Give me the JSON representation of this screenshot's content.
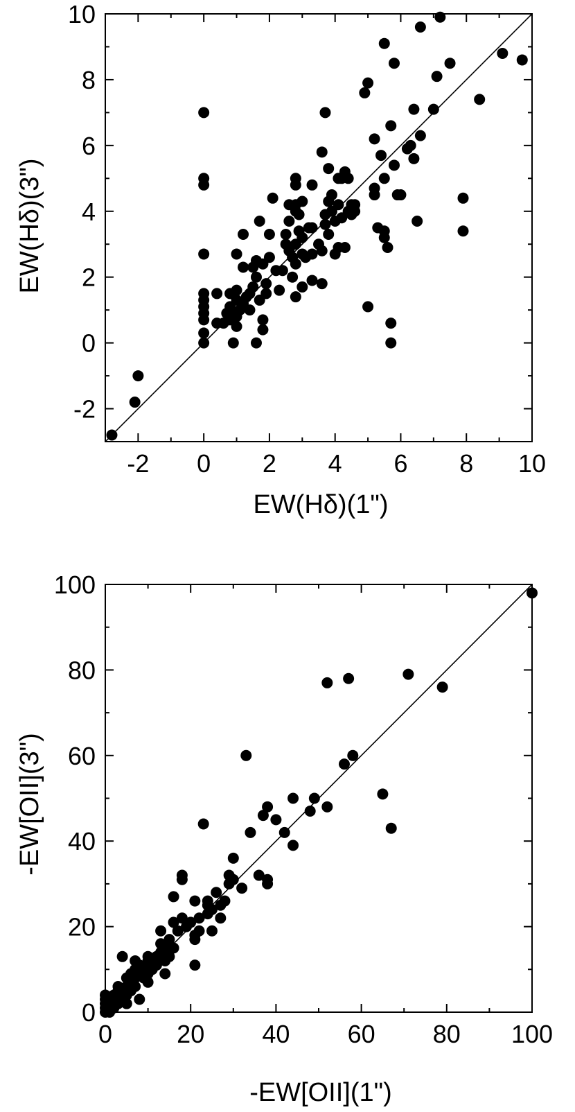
{
  "chart_data": [
    {
      "type": "scatter",
      "title": "",
      "xlabel": "EW(Hδ)(1\")",
      "ylabel": "EW(Hδ)(3\")",
      "xlim": [
        -3,
        10
      ],
      "ylim": [
        -3,
        10
      ],
      "xticks": [
        -2,
        0,
        2,
        4,
        6,
        8,
        10
      ],
      "yticks": [
        -2,
        0,
        2,
        4,
        6,
        8,
        10
      ],
      "xtick_labels": [
        "-2",
        "0",
        "2",
        "4",
        "6",
        "8",
        "10"
      ],
      "ytick_labels": [
        "-2",
        "0",
        "2",
        "4",
        "6",
        "8",
        "10"
      ],
      "grid": false,
      "reference_line": {
        "from": [
          -3,
          -3
        ],
        "to": [
          10,
          10
        ]
      },
      "points": [
        [
          -2.8,
          -2.8
        ],
        [
          -2.1,
          -1.8
        ],
        [
          -2.0,
          -1.0
        ],
        [
          0.0,
          0.0
        ],
        [
          0.0,
          0.3
        ],
        [
          0.0,
          0.7
        ],
        [
          0.0,
          0.9
        ],
        [
          0.0,
          1.1
        ],
        [
          0.0,
          1.3
        ],
        [
          0.0,
          1.5
        ],
        [
          0.0,
          2.7
        ],
        [
          0.0,
          4.8
        ],
        [
          0.0,
          5.0
        ],
        [
          0.0,
          7.0
        ],
        [
          0.4,
          0.6
        ],
        [
          0.4,
          1.5
        ],
        [
          0.6,
          0.6
        ],
        [
          0.7,
          0.9
        ],
        [
          0.8,
          0.7
        ],
        [
          0.8,
          1.1
        ],
        [
          0.8,
          1.5
        ],
        [
          0.9,
          0.0
        ],
        [
          0.9,
          0.9
        ],
        [
          1.0,
          0.5
        ],
        [
          1.0,
          0.8
        ],
        [
          1.0,
          1.3
        ],
        [
          1.0,
          1.6
        ],
        [
          1.0,
          2.7
        ],
        [
          1.1,
          1.0
        ],
        [
          1.2,
          1.2
        ],
        [
          1.2,
          2.3
        ],
        [
          1.2,
          3.3
        ],
        [
          1.3,
          1.4
        ],
        [
          1.4,
          1.0
        ],
        [
          1.4,
          1.5
        ],
        [
          1.5,
          1.7
        ],
        [
          1.5,
          2.3
        ],
        [
          1.6,
          0.0
        ],
        [
          1.6,
          2.0
        ],
        [
          1.6,
          2.5
        ],
        [
          1.7,
          3.7
        ],
        [
          1.7,
          1.3
        ],
        [
          1.8,
          0.4
        ],
        [
          1.8,
          0.7
        ],
        [
          1.8,
          2.4
        ],
        [
          1.9,
          1.5
        ],
        [
          1.9,
          1.8
        ],
        [
          2.0,
          2.6
        ],
        [
          2.0,
          3.3
        ],
        [
          2.1,
          4.4
        ],
        [
          2.2,
          2.2
        ],
        [
          2.3,
          1.6
        ],
        [
          2.4,
          2.2
        ],
        [
          2.5,
          3.0
        ],
        [
          2.5,
          3.3
        ],
        [
          2.6,
          2.8
        ],
        [
          2.6,
          3.7
        ],
        [
          2.6,
          4.2
        ],
        [
          2.7,
          2.0
        ],
        [
          2.7,
          2.6
        ],
        [
          2.8,
          1.4
        ],
        [
          2.8,
          2.4
        ],
        [
          2.8,
          3.0
        ],
        [
          2.8,
          4.0
        ],
        [
          2.8,
          4.2
        ],
        [
          2.8,
          4.8
        ],
        [
          2.8,
          5.0
        ],
        [
          2.9,
          3.4
        ],
        [
          2.9,
          3.9
        ],
        [
          3.0,
          1.7
        ],
        [
          3.0,
          2.7
        ],
        [
          3.0,
          3.2
        ],
        [
          3.0,
          4.3
        ],
        [
          3.1,
          2.6
        ],
        [
          3.2,
          3.5
        ],
        [
          3.3,
          1.9
        ],
        [
          3.3,
          2.7
        ],
        [
          3.3,
          3.5
        ],
        [
          3.3,
          4.8
        ],
        [
          3.5,
          3.0
        ],
        [
          3.6,
          1.8
        ],
        [
          3.6,
          2.8
        ],
        [
          3.6,
          5.8
        ],
        [
          3.7,
          3.6
        ],
        [
          3.7,
          3.9
        ],
        [
          3.7,
          7.0
        ],
        [
          3.8,
          3.3
        ],
        [
          3.8,
          4.3
        ],
        [
          3.8,
          5.3
        ],
        [
          3.9,
          4.0
        ],
        [
          3.9,
          4.5
        ],
        [
          4.0,
          2.7
        ],
        [
          4.0,
          3.7
        ],
        [
          4.1,
          2.9
        ],
        [
          4.1,
          4.2
        ],
        [
          4.1,
          5.0
        ],
        [
          4.2,
          5.0
        ],
        [
          4.2,
          3.8
        ],
        [
          4.3,
          5.2
        ],
        [
          4.3,
          2.9
        ],
        [
          4.4,
          5.0
        ],
        [
          4.4,
          4.0
        ],
        [
          4.5,
          3.9
        ],
        [
          4.5,
          4.2
        ],
        [
          4.6,
          4.0
        ],
        [
          4.6,
          4.2
        ],
        [
          4.9,
          7.6
        ],
        [
          5.0,
          1.1
        ],
        [
          5.0,
          7.9
        ],
        [
          5.2,
          4.5
        ],
        [
          5.2,
          4.7
        ],
        [
          5.2,
          6.2
        ],
        [
          5.3,
          3.5
        ],
        [
          5.4,
          5.7
        ],
        [
          5.5,
          9.1
        ],
        [
          5.5,
          3.4
        ],
        [
          5.5,
          3.2
        ],
        [
          5.5,
          5.0
        ],
        [
          5.6,
          2.9
        ],
        [
          5.7,
          0.0
        ],
        [
          5.7,
          0.6
        ],
        [
          5.7,
          6.6
        ],
        [
          5.8,
          5.4
        ],
        [
          5.8,
          8.5
        ],
        [
          5.9,
          4.5
        ],
        [
          6.0,
          4.5
        ],
        [
          6.2,
          5.9
        ],
        [
          6.3,
          6.0
        ],
        [
          6.4,
          5.6
        ],
        [
          6.4,
          7.1
        ],
        [
          6.5,
          3.7
        ],
        [
          6.6,
          6.3
        ],
        [
          6.6,
          9.6
        ],
        [
          7.0,
          7.1
        ],
        [
          7.1,
          8.1
        ],
        [
          7.2,
          9.9
        ],
        [
          7.5,
          8.5
        ],
        [
          7.9,
          4.4
        ],
        [
          7.9,
          3.4
        ],
        [
          8.4,
          7.4
        ],
        [
          9.1,
          8.8
        ],
        [
          9.7,
          8.6
        ]
      ]
    },
    {
      "type": "scatter",
      "title": "",
      "xlabel": "-EW[OII](1\")",
      "ylabel": "-EW[OII](3\")",
      "xlim": [
        0,
        100
      ],
      "ylim": [
        0,
        100
      ],
      "xticks": [
        0,
        20,
        40,
        60,
        80,
        100
      ],
      "yticks": [
        0,
        20,
        40,
        60,
        80,
        100
      ],
      "xtick_labels": [
        "0",
        "20",
        "40",
        "60",
        "80",
        "100"
      ],
      "ytick_labels": [
        "0",
        "20",
        "40",
        "60",
        "80",
        "100"
      ],
      "grid": false,
      "reference_line": {
        "from": [
          0,
          0
        ],
        "to": [
          100,
          100
        ]
      },
      "points": [
        [
          0,
          0
        ],
        [
          0,
          1
        ],
        [
          0,
          2
        ],
        [
          0,
          3
        ],
        [
          0,
          4
        ],
        [
          1,
          0
        ],
        [
          1,
          1
        ],
        [
          1,
          2
        ],
        [
          1,
          3
        ],
        [
          2,
          1
        ],
        [
          2,
          2
        ],
        [
          2,
          3
        ],
        [
          2,
          4
        ],
        [
          3,
          2
        ],
        [
          3,
          3
        ],
        [
          3,
          4
        ],
        [
          3,
          5
        ],
        [
          3,
          6
        ],
        [
          4,
          3
        ],
        [
          4,
          5
        ],
        [
          4,
          13
        ],
        [
          5,
          2
        ],
        [
          5,
          4
        ],
        [
          5,
          6
        ],
        [
          5,
          8
        ],
        [
          6,
          5
        ],
        [
          6,
          7
        ],
        [
          6,
          9
        ],
        [
          7,
          6
        ],
        [
          7,
          8
        ],
        [
          7,
          10
        ],
        [
          7,
          12
        ],
        [
          8,
          3
        ],
        [
          8,
          9
        ],
        [
          8,
          11
        ],
        [
          9,
          8
        ],
        [
          9,
          10
        ],
        [
          10,
          7
        ],
        [
          10,
          9
        ],
        [
          10,
          12
        ],
        [
          10,
          13
        ],
        [
          11,
          10
        ],
        [
          11,
          11
        ],
        [
          12,
          11
        ],
        [
          12,
          13
        ],
        [
          13,
          14
        ],
        [
          13,
          16
        ],
        [
          13,
          19
        ],
        [
          14,
          9
        ],
        [
          14,
          12
        ],
        [
          14,
          14
        ],
        [
          15,
          13
        ],
        [
          15,
          15
        ],
        [
          15,
          17
        ],
        [
          16,
          15
        ],
        [
          16,
          21
        ],
        [
          16,
          27
        ],
        [
          17,
          19
        ],
        [
          18,
          22
        ],
        [
          18,
          31
        ],
        [
          18,
          32
        ],
        [
          19,
          20
        ],
        [
          20,
          21
        ],
        [
          21,
          11
        ],
        [
          21,
          17
        ],
        [
          21,
          18
        ],
        [
          21,
          26
        ],
        [
          22,
          19
        ],
        [
          22,
          22
        ],
        [
          23,
          44
        ],
        [
          24,
          23
        ],
        [
          24,
          25
        ],
        [
          24,
          26
        ],
        [
          25,
          19
        ],
        [
          25,
          24
        ],
        [
          26,
          28
        ],
        [
          27,
          22
        ],
        [
          27,
          25
        ],
        [
          28,
          26
        ],
        [
          29,
          30
        ],
        [
          29,
          32
        ],
        [
          30,
          31
        ],
        [
          30,
          36
        ],
        [
          32,
          29
        ],
        [
          33,
          60
        ],
        [
          34,
          42
        ],
        [
          36,
          32
        ],
        [
          37,
          46
        ],
        [
          38,
          30
        ],
        [
          38,
          31
        ],
        [
          38,
          48
        ],
        [
          40,
          45
        ],
        [
          42,
          42
        ],
        [
          44,
          39
        ],
        [
          44,
          50
        ],
        [
          48,
          47
        ],
        [
          49,
          50
        ],
        [
          52,
          48
        ],
        [
          52,
          77
        ],
        [
          56,
          58
        ],
        [
          57,
          78
        ],
        [
          58,
          60
        ],
        [
          65,
          51
        ],
        [
          67,
          43
        ],
        [
          71,
          79
        ],
        [
          79,
          76
        ],
        [
          100,
          98
        ]
      ]
    }
  ]
}
